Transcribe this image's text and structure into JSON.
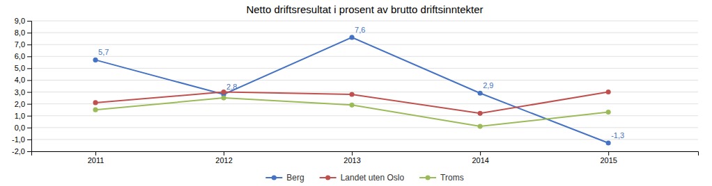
{
  "chart_data": {
    "type": "line",
    "title": "Netto driftsresultat i prosent av brutto driftsinntekter",
    "x": [
      2011,
      2012,
      2013,
      2014,
      2015
    ],
    "series": [
      {
        "name": "Berg",
        "color": "#4472C4",
        "values": [
          5.7,
          2.8,
          7.6,
          2.9,
          -1.3
        ],
        "data_labels": true,
        "value_labels": [
          "5,7",
          "2,8",
          "7,6",
          "2,9",
          "-1,3"
        ]
      },
      {
        "name": "Landet uten Oslo",
        "color": "#C0504D",
        "values": [
          2.1,
          3.0,
          2.8,
          1.2,
          3.0
        ]
      },
      {
        "name": "Troms",
        "color": "#9BBB59",
        "values": [
          1.5,
          2.5,
          1.9,
          0.1,
          1.3
        ]
      }
    ],
    "xlim": [
      2010.5,
      2015.7
    ],
    "xticks": [
      2011,
      2012,
      2013,
      2014,
      2015
    ],
    "ylim": [
      -2.0,
      9.0
    ],
    "yticks": [
      {
        "value": -2.0,
        "label": "-2,0"
      },
      {
        "value": -1.0,
        "label": "-1,0"
      },
      {
        "value": 0.0,
        "label": "0,0"
      },
      {
        "value": 1.0,
        "label": "1,0"
      },
      {
        "value": 2.0,
        "label": "2,0"
      },
      {
        "value": 3.0,
        "label": "3,0"
      },
      {
        "value": 4.0,
        "label": "4,0"
      },
      {
        "value": 5.0,
        "label": "5,0"
      },
      {
        "value": 6.0,
        "label": "6,0"
      },
      {
        "value": 7.0,
        "label": "7,0"
      },
      {
        "value": 8.0,
        "label": "8,0"
      },
      {
        "value": 9.0,
        "label": "9,0"
      }
    ],
    "grid": true,
    "marker": "circle",
    "legend": "bottom"
  }
}
